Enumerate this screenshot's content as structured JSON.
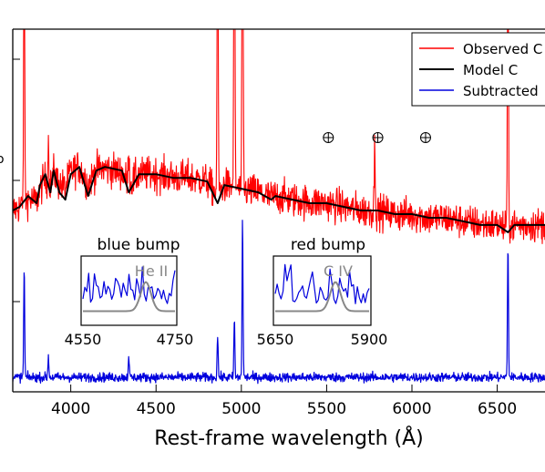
{
  "chart_data": {
    "type": "line",
    "xlabel": "Rest-frame wavelength (Å)",
    "xlim": [
      3660,
      6780
    ],
    "ylim": [
      0,
      1
    ],
    "x_ticks": [
      4000,
      4500,
      5000,
      5500,
      6000,
      6500
    ],
    "x_tick_labels": [
      "4000",
      "4500",
      "5000",
      "5500",
      "6000",
      "6500"
    ],
    "ylabel_fragment": "o",
    "grid": false,
    "legend": {
      "placement": "top-right",
      "entries": [
        {
          "label": "Observed C",
          "color": "#ff0000"
        },
        {
          "label": "Model C",
          "color": "#000000"
        },
        {
          "label": "Subtracted",
          "color": "#0000dd"
        }
      ]
    },
    "series": [
      {
        "name": "Observed C",
        "color": "#ff0000",
        "continuum": [
          [
            3660,
            0.5
          ],
          [
            3700,
            0.51
          ],
          [
            3800,
            0.53
          ],
          [
            3900,
            0.6
          ],
          [
            4000,
            0.62
          ],
          [
            4100,
            0.62
          ],
          [
            4300,
            0.6
          ],
          [
            4500,
            0.6
          ],
          [
            4700,
            0.59
          ],
          [
            4900,
            0.57
          ],
          [
            5100,
            0.55
          ],
          [
            5300,
            0.53
          ],
          [
            5500,
            0.52
          ],
          [
            5700,
            0.5
          ],
          [
            5900,
            0.49
          ],
          [
            6100,
            0.48
          ],
          [
            6300,
            0.47
          ],
          [
            6500,
            0.46
          ],
          [
            6780,
            0.46
          ]
        ],
        "emission_lines": [
          [
            3727,
            0.65
          ],
          [
            3869,
            0.12
          ],
          [
            4340,
            0.1
          ],
          [
            4861,
            0.8
          ],
          [
            4959,
            0.9
          ],
          [
            5007,
            1.0
          ],
          [
            5782,
            0.18
          ],
          [
            6563,
            0.75
          ]
        ],
        "noise": 0.045
      },
      {
        "name": "Model C",
        "color": "#000000",
        "points": [
          [
            3660,
            0.5
          ],
          [
            3700,
            0.51
          ],
          [
            3750,
            0.54
          ],
          [
            3800,
            0.52
          ],
          [
            3820,
            0.57
          ],
          [
            3850,
            0.6
          ],
          [
            3880,
            0.55
          ],
          [
            3900,
            0.61
          ],
          [
            3933,
            0.55
          ],
          [
            3968,
            0.53
          ],
          [
            4000,
            0.6
          ],
          [
            4050,
            0.62
          ],
          [
            4102,
            0.54
          ],
          [
            4150,
            0.61
          ],
          [
            4200,
            0.62
          ],
          [
            4300,
            0.61
          ],
          [
            4340,
            0.55
          ],
          [
            4400,
            0.6
          ],
          [
            4500,
            0.6
          ],
          [
            4600,
            0.59
          ],
          [
            4700,
            0.59
          ],
          [
            4800,
            0.58
          ],
          [
            4861,
            0.52
          ],
          [
            4900,
            0.57
          ],
          [
            5000,
            0.56
          ],
          [
            5100,
            0.55
          ],
          [
            5175,
            0.53
          ],
          [
            5200,
            0.54
          ],
          [
            5300,
            0.53
          ],
          [
            5400,
            0.52
          ],
          [
            5500,
            0.52
          ],
          [
            5600,
            0.51
          ],
          [
            5700,
            0.5
          ],
          [
            5800,
            0.5
          ],
          [
            5900,
            0.49
          ],
          [
            6000,
            0.49
          ],
          [
            6100,
            0.48
          ],
          [
            6200,
            0.48
          ],
          [
            6300,
            0.47
          ],
          [
            6400,
            0.46
          ],
          [
            6500,
            0.46
          ],
          [
            6563,
            0.44
          ],
          [
            6600,
            0.46
          ],
          [
            6700,
            0.46
          ],
          [
            6780,
            0.46
          ]
        ]
      },
      {
        "name": "Subtracted",
        "color": "#0000dd",
        "baseline": 0.04,
        "emission_lines": [
          [
            3727,
            0.3
          ],
          [
            3869,
            0.06
          ],
          [
            4340,
            0.06
          ],
          [
            4861,
            0.12
          ],
          [
            4959,
            0.16
          ],
          [
            5007,
            0.44
          ],
          [
            6563,
            0.37
          ]
        ],
        "noise": 0.012
      }
    ],
    "telluric_markers": [
      5510,
      5800,
      6080
    ],
    "insets": [
      {
        "title": "blue bump",
        "line_label": "He II",
        "x_tick_labels": [
          "4550",
          "4750"
        ],
        "xlim": [
          4550,
          4750
        ]
      },
      {
        "title": "red bump",
        "line_label": "C IV",
        "x_tick_labels": [
          "5650",
          "5900"
        ],
        "xlim": [
          5650,
          5900
        ]
      }
    ]
  }
}
